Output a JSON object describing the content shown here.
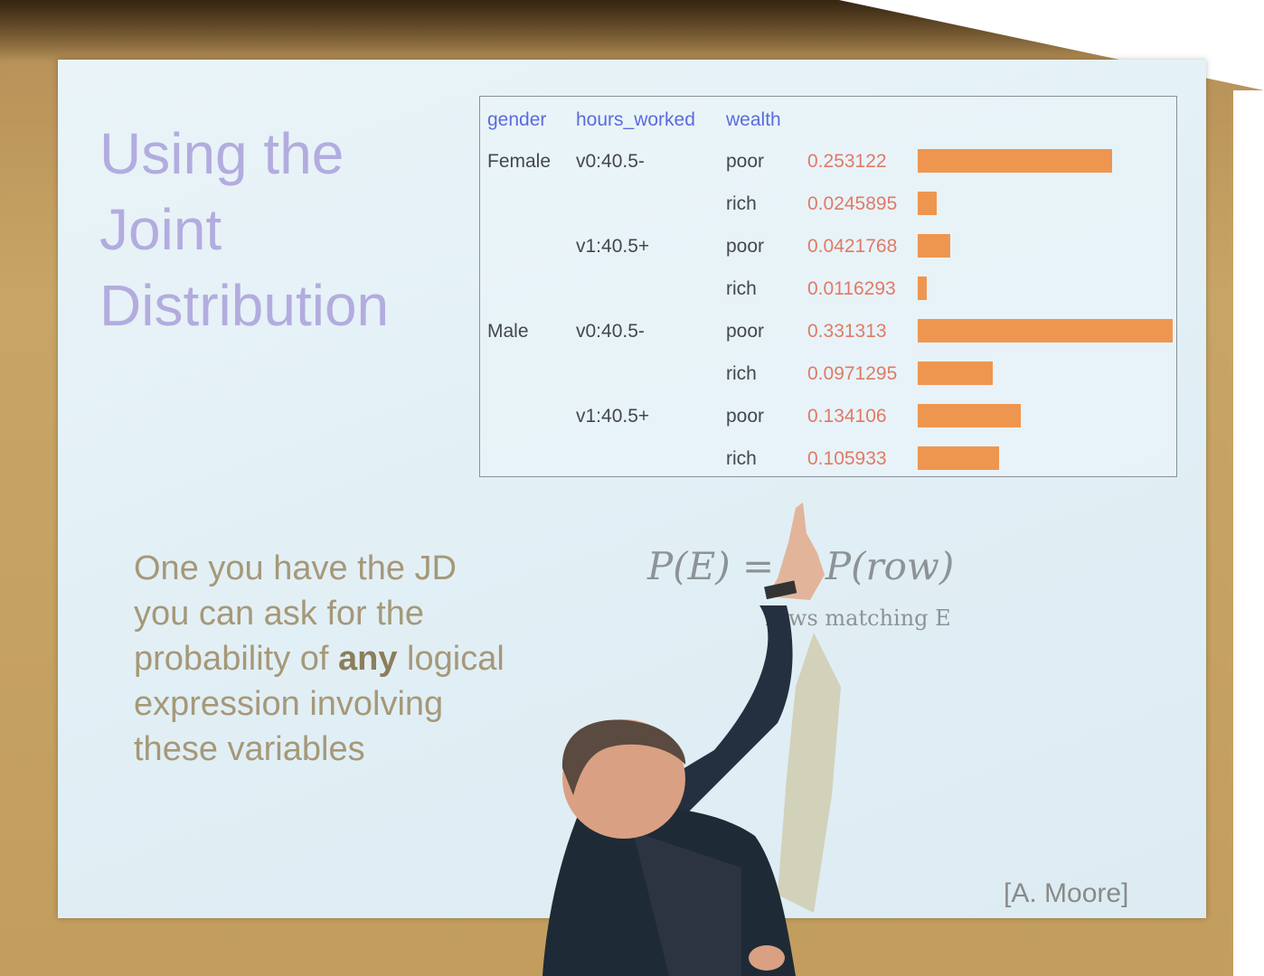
{
  "slide": {
    "title_lines": [
      "Using the",
      "Joint",
      "Distribution"
    ],
    "table": {
      "headers": [
        "gender",
        "hours_worked",
        "wealth"
      ],
      "rows": [
        {
          "gender": "Female",
          "hours": "v0:40.5-",
          "wealth": "poor",
          "prob": "0.253122",
          "value": 0.253122
        },
        {
          "gender": "",
          "hours": "",
          "wealth": "rich",
          "prob": "0.0245895",
          "value": 0.0245895
        },
        {
          "gender": "",
          "hours": "v1:40.5+",
          "wealth": "poor",
          "prob": "0.0421768",
          "value": 0.0421768
        },
        {
          "gender": "",
          "hours": "",
          "wealth": "rich",
          "prob": "0.0116293",
          "value": 0.0116293
        },
        {
          "gender": "Male",
          "hours": "v0:40.5-",
          "wealth": "poor",
          "prob": "0.331313",
          "value": 0.331313
        },
        {
          "gender": "",
          "hours": "",
          "wealth": "rich",
          "prob": "0.0971295",
          "value": 0.0971295
        },
        {
          "gender": "",
          "hours": "v1:40.5+",
          "wealth": "poor",
          "prob": "0.134106",
          "value": 0.134106
        },
        {
          "gender": "",
          "hours": "",
          "wealth": "rich",
          "prob": "0.105933",
          "value": 0.105933
        }
      ]
    },
    "body": {
      "line1": "One you have the JD",
      "line2": "you can ask for the",
      "line3_pre": "probability of ",
      "line3_bold": "any",
      "line3_post": " logical",
      "line4": "expression involving",
      "line5": "these variables"
    },
    "formula": {
      "main": "P(E) = ∑ P(row)",
      "subscript": "rows matching E"
    },
    "credit": "[A. Moore]"
  },
  "colors": {
    "title": "#b3acdf",
    "header": "#5b6bdc",
    "probability": "#e07a66",
    "bar": "#ee9650",
    "body": "#a69878"
  }
}
